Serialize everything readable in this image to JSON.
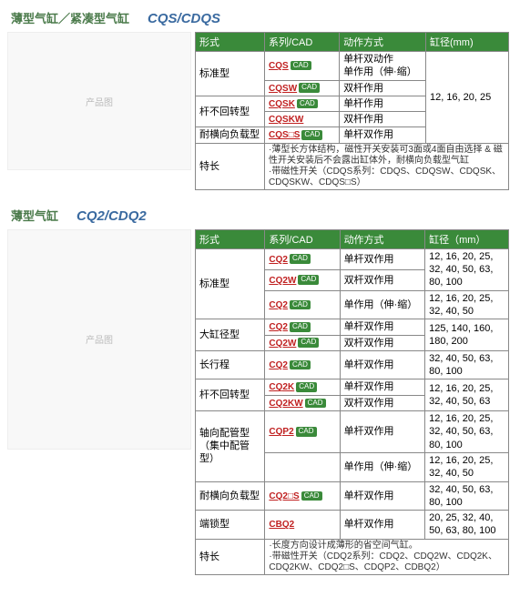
{
  "colors": {
    "header_bg": "#3a8a3a",
    "header_text": "#ffffff",
    "border": "#888888",
    "title_ch": "#4a7a4a",
    "title_en": "#3a6aa0",
    "link": "#c02020"
  },
  "section1": {
    "title_ch": "薄型气缸／紧凑型气缸",
    "title_en": "CQS/CDQS",
    "headers": [
      "形式",
      "系列/CAD",
      "动作方式",
      "缸径(mm)"
    ],
    "bore": "12, 16, 20, 25",
    "rows": [
      {
        "form": "标准型",
        "form_rowspan": 2,
        "series": "CQS",
        "cad": true,
        "action": "单杆双动作\n单作用（伸·缩）"
      },
      {
        "series": "CQSW",
        "cad": true,
        "action": "双杆作用"
      },
      {
        "form": "杆不回转型",
        "form_rowspan": 2,
        "series": "CQSK",
        "cad": true,
        "action": "单杆作用"
      },
      {
        "series": "CQSKW",
        "cad": false,
        "action": "双杆作用"
      },
      {
        "form": "耐横向负载型",
        "form_rowspan": 1,
        "series": "CQS□S",
        "cad": true,
        "action": "单杆双作用"
      }
    ],
    "feature_label": "特长",
    "feature_text": "·薄型长方体结构，磁性开关安装可3面或4面自由选择 & 磁性开关安装后不会露出缸体外，耐横向负载型气缸\n·带磁性开关（CDQS系列：CDQS、CDQSW、CDQSK、CDQSKW、CDQS□S）"
  },
  "section2": {
    "title_ch": "薄型气缸",
    "title_en": "CQ2/CDQ2",
    "headers": [
      "形式",
      "系列/CAD",
      "动作方式",
      "缸径（mm）"
    ],
    "rows": [
      {
        "form": "标准型",
        "form_rowspan": 3,
        "series": "CQ2",
        "cad": true,
        "action": "单杆双作用",
        "bore": "12, 16, 20, 25, 32, 40, 50, 63, 80, 100"
      },
      {
        "series": "CQ2W",
        "cad": true,
        "action": "双杆双作用",
        "bore": ""
      },
      {
        "series": "CQ2",
        "cad": true,
        "action": "单作用（伸·缩）",
        "bore": "12, 16, 20, 25, 32, 40, 50"
      },
      {
        "form": "大缸径型",
        "form_rowspan": 2,
        "series": "CQ2",
        "cad": true,
        "action": "单杆双作用",
        "bore": "125, 140, 160, 180, 200"
      },
      {
        "series": "CQ2W",
        "cad": true,
        "action": "双杆双作用",
        "bore": ""
      },
      {
        "form": "长行程",
        "form_rowspan": 1,
        "series": "CQ2",
        "cad": true,
        "action": "单杆双作用",
        "bore": "32, 40, 50, 63, 80, 100"
      },
      {
        "form": "杆不回转型",
        "form_rowspan": 2,
        "series": "CQ2K",
        "cad": true,
        "action": "单杆双作用",
        "bore": "12, 16, 20, 25, 32, 40, 50, 63"
      },
      {
        "series": "CQ2KW",
        "cad": true,
        "action": "双杆双作用",
        "bore": ""
      },
      {
        "form": "轴向配管型\n（集中配管型）",
        "form_rowspan": 2,
        "series": "CQP2",
        "cad": true,
        "action": "单杆双作用",
        "bore": "12, 16, 20, 25, 32, 40, 50, 63, 80, 100"
      },
      {
        "series": "",
        "cad": false,
        "action": "单作用（伸·缩）",
        "bore": "12, 16, 20, 25, 32, 40, 50"
      },
      {
        "form": "耐横向负载型",
        "form_rowspan": 1,
        "series": "CQ2□S",
        "cad": true,
        "action": "单杆双作用",
        "bore": "32, 40, 50, 63, 80, 100"
      },
      {
        "form": "端锁型",
        "form_rowspan": 1,
        "series": "CBQ2",
        "cad": false,
        "action": "单杆双作用",
        "bore": "20, 25, 32, 40, 50, 63, 80, 100"
      }
    ],
    "feature_label": "特长",
    "feature_text": "·长度方向设计成薄形的省空间气缸。\n·带磁性开关（CDQ2系列：CDQ2、CDQ2W、CDQ2K、CDQ2KW、CDQ2□S、CDQP2、CDBQ2）"
  }
}
